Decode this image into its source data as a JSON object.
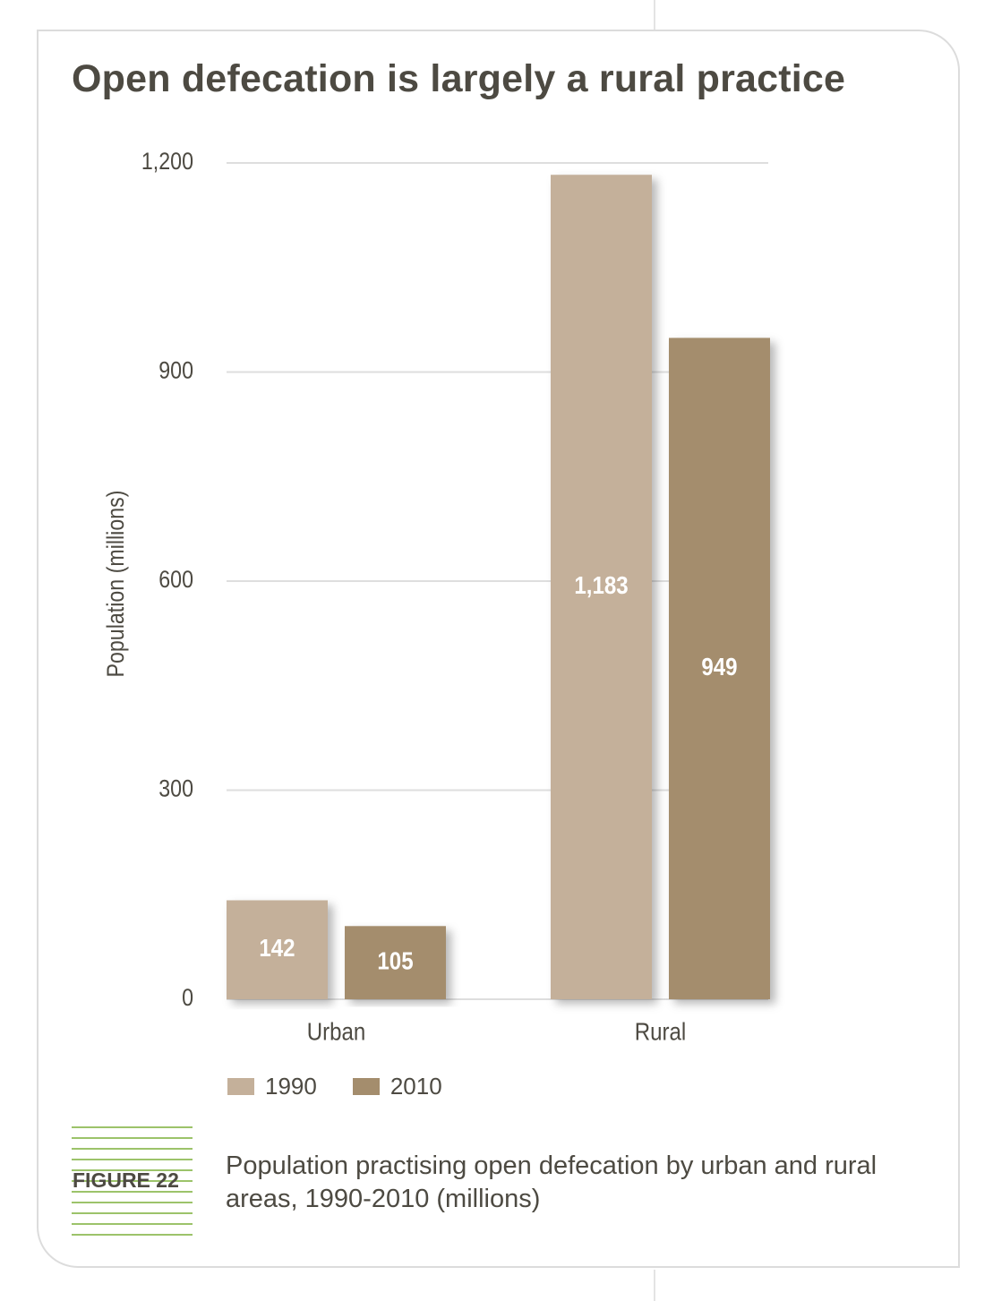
{
  "title": "Open defecation is largely a rural practice",
  "figure": {
    "label": "FIGURE 22",
    "caption": "Population practising open defecation by urban and rural areas, 1990-2010 (millions)"
  },
  "colors": {
    "series_1990": "#c4b09a",
    "series_2010": "#a48d6d",
    "grid": "#dedede",
    "text": "#4d4a42",
    "accent": "#9cc36a"
  },
  "chart_data": {
    "type": "bar",
    "categories": [
      "Urban",
      "Rural"
    ],
    "series": [
      {
        "name": "1990",
        "values": [
          142,
          1183
        ],
        "labels": [
          "142",
          "1,183"
        ]
      },
      {
        "name": "2010",
        "values": [
          105,
          949
        ],
        "labels": [
          "105",
          "949"
        ]
      }
    ],
    "ylabel": "Population (millions)",
    "xlabel": "",
    "ylim": [
      0,
      1200
    ],
    "yticks": [
      0,
      300,
      600,
      900,
      1200
    ],
    "ytick_labels": [
      "0",
      "300",
      "600",
      "900",
      "1,200"
    ],
    "grid": true,
    "legend_position": "bottom-left"
  }
}
